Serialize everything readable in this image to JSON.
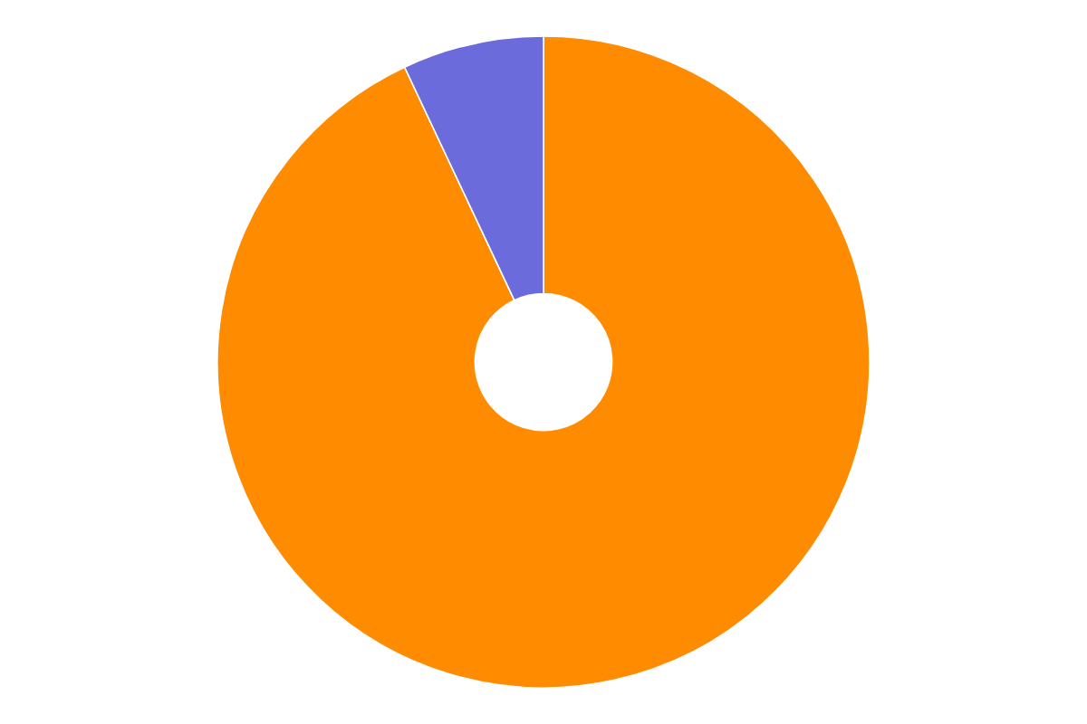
{
  "chart_data": {
    "type": "pie",
    "values": [
      93,
      0.001,
      0.001,
      7
    ],
    "colors": [
      "#FF8C00",
      "#3CB371",
      "#CC0000",
      "#6B6BDB"
    ],
    "data_labels": false
  }
}
